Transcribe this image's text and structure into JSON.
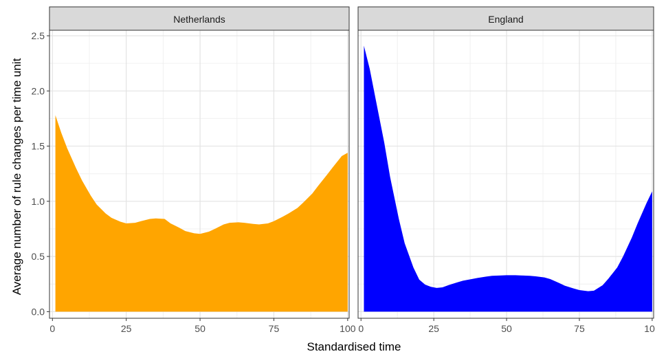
{
  "chart_data": {
    "type": "area",
    "xlabel": "Standardised time",
    "ylabel": "Average number of rule changes per time unit",
    "xlim": [
      -1,
      100.5
    ],
    "ylim": [
      -0.06,
      2.55
    ],
    "xticks": [
      0,
      25,
      50,
      75,
      100
    ],
    "yticks": [
      0.0,
      0.5,
      1.0,
      1.5,
      2.0,
      2.5
    ],
    "ytick_labels": [
      "0.0",
      "0.5",
      "1.0",
      "1.5",
      "2.0",
      "2.5"
    ],
    "grid": true,
    "panels": [
      {
        "strip_label": "Netherlands",
        "fill_color": "#FFA500",
        "x": [
          1,
          3,
          5,
          8,
          10,
          13,
          15,
          18,
          20,
          23,
          25,
          28,
          30,
          33,
          35,
          38,
          40,
          43,
          45,
          48,
          50,
          53,
          55,
          58,
          60,
          63,
          65,
          68,
          70,
          73,
          75,
          78,
          80,
          83,
          85,
          88,
          90,
          93,
          95,
          98,
          100
        ],
        "y": [
          1.78,
          1.62,
          1.48,
          1.3,
          1.19,
          1.05,
          0.97,
          0.89,
          0.85,
          0.815,
          0.8,
          0.805,
          0.82,
          0.84,
          0.845,
          0.84,
          0.8,
          0.76,
          0.73,
          0.71,
          0.705,
          0.725,
          0.75,
          0.79,
          0.805,
          0.81,
          0.805,
          0.795,
          0.79,
          0.8,
          0.82,
          0.86,
          0.89,
          0.94,
          0.99,
          1.07,
          1.14,
          1.24,
          1.31,
          1.41,
          1.44
        ]
      },
      {
        "strip_label": "England",
        "fill_color": "#0000FF",
        "x": [
          1,
          3,
          5,
          8,
          10,
          13,
          15,
          18,
          20,
          22,
          24,
          26,
          28,
          30,
          33,
          35,
          38,
          40,
          43,
          45,
          48,
          50,
          53,
          55,
          58,
          60,
          63,
          65,
          68,
          70,
          73,
          75,
          78,
          80,
          83,
          85,
          88,
          90,
          93,
          95,
          98,
          100
        ],
        "y": [
          2.41,
          2.2,
          1.93,
          1.53,
          1.22,
          0.84,
          0.62,
          0.4,
          0.29,
          0.245,
          0.225,
          0.215,
          0.22,
          0.24,
          0.265,
          0.28,
          0.295,
          0.305,
          0.318,
          0.325,
          0.328,
          0.33,
          0.33,
          0.328,
          0.325,
          0.32,
          0.31,
          0.295,
          0.26,
          0.235,
          0.21,
          0.195,
          0.185,
          0.19,
          0.24,
          0.3,
          0.4,
          0.5,
          0.67,
          0.8,
          0.98,
          1.09
        ]
      }
    ]
  }
}
